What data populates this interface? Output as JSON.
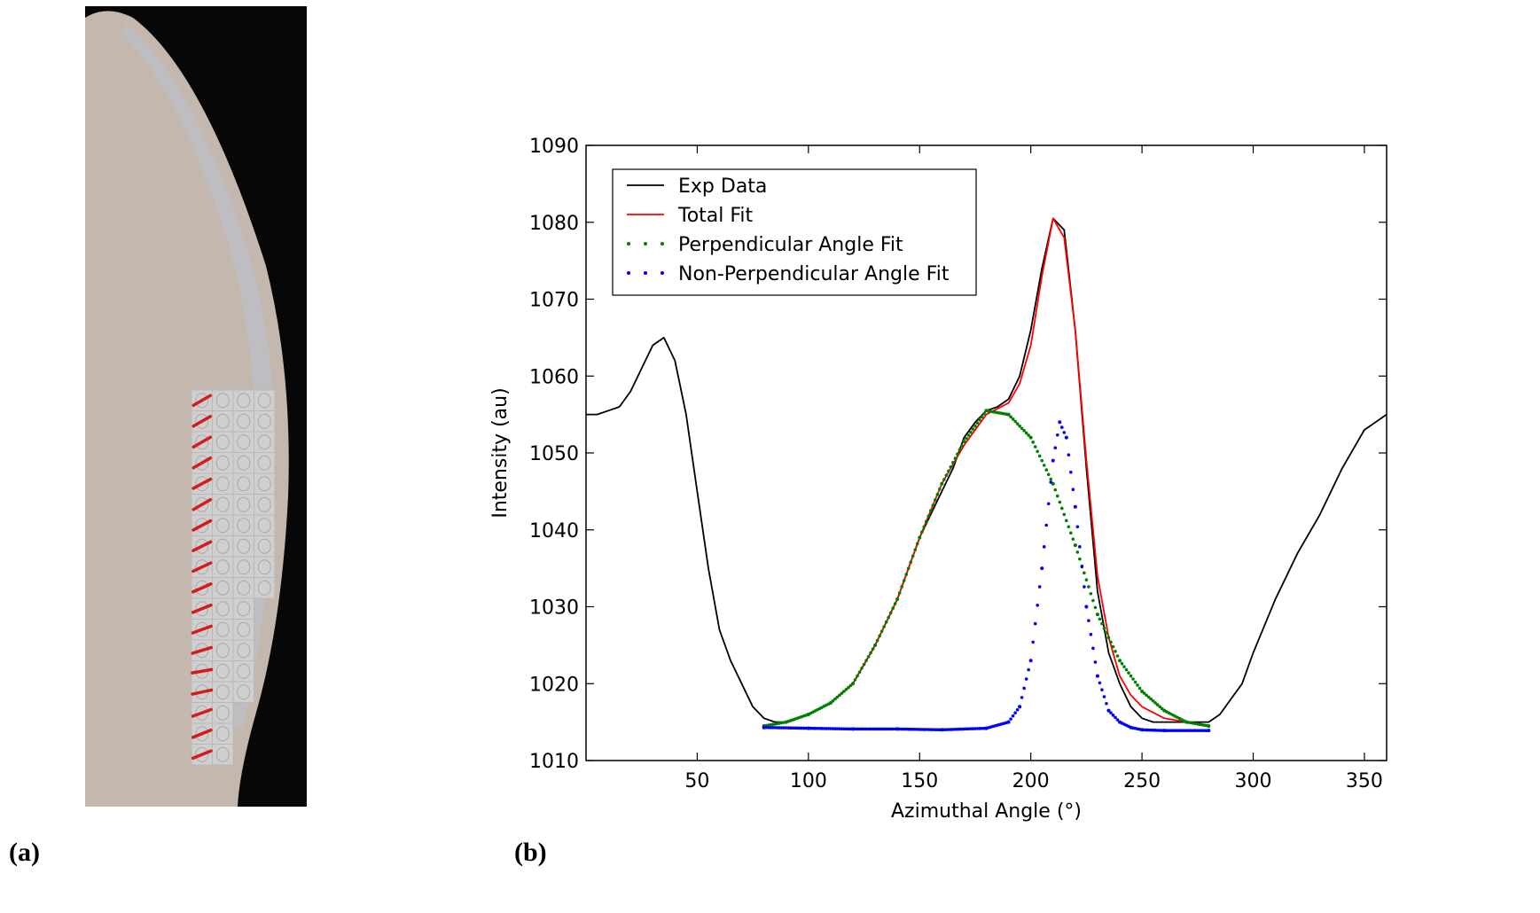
{
  "panels": {
    "a_label": "(a)",
    "b_label": "(b)"
  },
  "photo": {
    "background": "#070707",
    "tissue_color": "#c4b7ad",
    "edge_color": "#b9c4d3",
    "vector_color": "#d41c1c",
    "rows": [
      {
        "cells": 4,
        "angle": -30
      },
      {
        "cells": 4,
        "angle": -30
      },
      {
        "cells": 4,
        "angle": -30
      },
      {
        "cells": 4,
        "angle": -30
      },
      {
        "cells": 4,
        "angle": -28
      },
      {
        "cells": 4,
        "angle": -30
      },
      {
        "cells": 4,
        "angle": -28
      },
      {
        "cells": 4,
        "angle": -27
      },
      {
        "cells": 4,
        "angle": -25
      },
      {
        "cells": 4,
        "angle": -24
      },
      {
        "cells": 3,
        "angle": -22
      },
      {
        "cells": 3,
        "angle": -20
      },
      {
        "cells": 3,
        "angle": -17
      },
      {
        "cells": 3,
        "angle": -10
      },
      {
        "cells": 3,
        "angle": -12
      },
      {
        "cells": 2,
        "angle": -20
      },
      {
        "cells": 2,
        "angle": -22
      },
      {
        "cells": 2,
        "angle": -22
      }
    ]
  },
  "chart_data": {
    "type": "line",
    "xlabel": "Azimuthal Angle (°)",
    "ylabel": "Intensity (au)",
    "xlim": [
      0,
      360
    ],
    "ylim": [
      1010,
      1090
    ],
    "xticks": [
      50,
      100,
      150,
      200,
      250,
      300,
      350
    ],
    "yticks": [
      1010,
      1020,
      1030,
      1040,
      1050,
      1060,
      1070,
      1080,
      1090
    ],
    "grid": false,
    "legend_position": "top-left",
    "series": [
      {
        "name": "Exp Data",
        "style": "line",
        "color": "#000000",
        "x": [
          0,
          5,
          10,
          15,
          20,
          25,
          30,
          35,
          40,
          45,
          50,
          55,
          60,
          65,
          70,
          75,
          80,
          85,
          90,
          95,
          100,
          110,
          120,
          130,
          140,
          150,
          160,
          165,
          170,
          175,
          180,
          185,
          190,
          195,
          200,
          205,
          210,
          215,
          220,
          225,
          230,
          235,
          240,
          245,
          250,
          255,
          260,
          265,
          270,
          275,
          280,
          285,
          290,
          295,
          300,
          310,
          320,
          330,
          340,
          350,
          360
        ],
        "y": [
          1055,
          1055,
          1055.5,
          1056,
          1058,
          1061,
          1064,
          1065,
          1062,
          1055,
          1045,
          1035,
          1027,
          1023,
          1020,
          1017,
          1015.5,
          1015,
          1015,
          1015.5,
          1016,
          1017.5,
          1020,
          1025,
          1031,
          1039,
          1045,
          1048,
          1052,
          1054,
          1055.5,
          1056,
          1057,
          1060,
          1066,
          1074,
          1080.5,
          1079,
          1066,
          1048,
          1032,
          1024,
          1020,
          1017,
          1015.5,
          1015,
          1015,
          1015,
          1015,
          1015,
          1015,
          1016,
          1018,
          1020,
          1024,
          1031,
          1037,
          1042,
          1048,
          1053,
          1055
        ]
      },
      {
        "name": "Total Fit",
        "style": "line",
        "color": "#ff0000",
        "x": [
          80,
          90,
          100,
          110,
          120,
          130,
          140,
          150,
          160,
          170,
          180,
          190,
          195,
          200,
          205,
          210,
          215,
          220,
          225,
          230,
          235,
          240,
          245,
          250,
          260,
          270,
          280
        ],
        "y": [
          1014.5,
          1015,
          1016,
          1017.5,
          1020,
          1025,
          1031,
          1039,
          1046,
          1051,
          1055,
          1056.5,
          1059,
          1064,
          1073,
          1080.5,
          1078,
          1066,
          1049,
          1034,
          1026,
          1021,
          1018.5,
          1017,
          1015.5,
          1015,
          1014.5
        ]
      },
      {
        "name": "Perpendicular Angle Fit",
        "style": "dots",
        "color": "#008000",
        "x": [
          80,
          90,
          100,
          110,
          120,
          130,
          140,
          150,
          160,
          170,
          180,
          190,
          200,
          210,
          220,
          230,
          240,
          250,
          260,
          270,
          280
        ],
        "y": [
          1014.5,
          1015,
          1016,
          1017.5,
          1020,
          1025,
          1031,
          1039,
          1046,
          1051.5,
          1055.5,
          1055,
          1052,
          1046,
          1038,
          1029,
          1023,
          1019,
          1016.5,
          1015,
          1014.5
        ]
      },
      {
        "name": "Non-Perpendicular Angle Fit",
        "style": "dots",
        "color": "#0000ff",
        "x": [
          80,
          100,
          120,
          140,
          160,
          180,
          190,
          195,
          200,
          205,
          210,
          213,
          216,
          220,
          225,
          230,
          235,
          240,
          245,
          250,
          260,
          280
        ],
        "y": [
          1014.3,
          1014.2,
          1014.1,
          1014.1,
          1014,
          1014.2,
          1015,
          1017,
          1023,
          1035,
          1049,
          1054,
          1052,
          1043,
          1030,
          1021,
          1016.5,
          1015,
          1014.3,
          1014,
          1013.9,
          1013.9
        ]
      }
    ]
  }
}
